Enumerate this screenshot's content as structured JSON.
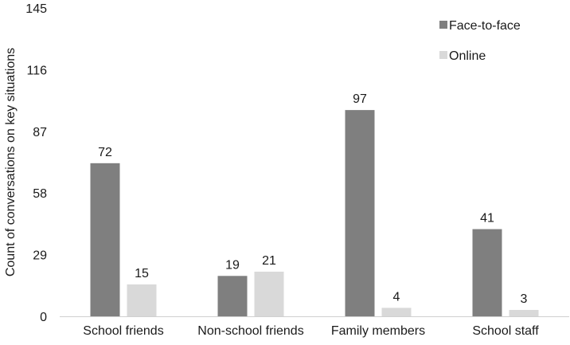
{
  "chart_data": {
    "type": "bar",
    "title": "",
    "xlabel": "",
    "ylabel": "Count of conversations on key situations",
    "categories": [
      "School friends",
      "Non-school friends",
      "Family members",
      "School staff"
    ],
    "series": [
      {
        "name": "Face-to-face",
        "values": [
          72,
          19,
          97,
          41
        ],
        "color": "#7f7f7f"
      },
      {
        "name": "Online",
        "values": [
          15,
          21,
          4,
          3
        ],
        "color": "#d9d9d9"
      }
    ],
    "ylim": [
      0,
      145
    ],
    "yticks": [
      "0",
      "29",
      "58",
      "87",
      "116",
      "145"
    ],
    "grid": false,
    "legend": "top-right",
    "data_labels": true
  }
}
